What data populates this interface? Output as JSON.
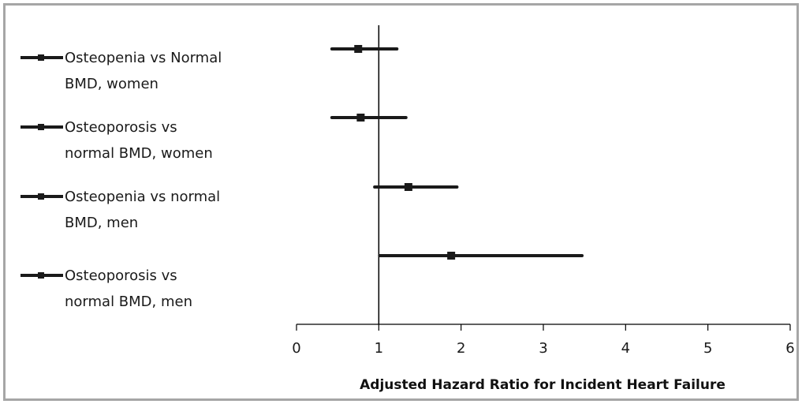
{
  "chart_data": {
    "type": "scatter",
    "subtype": "forest-plot",
    "title": "",
    "xlabel": "Adjusted Hazard Ratio for Incident Heart Failure",
    "ylabel": "",
    "xlim": [
      0,
      6
    ],
    "xticks": [
      "0",
      "1",
      "2",
      "3",
      "4",
      "5",
      "6"
    ],
    "reference_line": 1,
    "grid": false,
    "legend_position": "left",
    "series": [
      {
        "name": "Osteopenia vs Normal BMD, women",
        "lines": [
          "Osteopenia vs Normal",
          "BMD, women"
        ],
        "hr": 0.75,
        "ci": [
          0.43,
          1.22
        ]
      },
      {
        "name": "Osteoporosis vs normal BMD, women",
        "lines": [
          " Osteoporosis vs",
          "normal BMD, women"
        ],
        "hr": 0.78,
        "ci": [
          0.43,
          1.33
        ]
      },
      {
        "name": "Osteopenia vs normal BMD, men",
        "lines": [
          "Osteopenia vs normal",
          "BMD, men"
        ],
        "hr": 1.36,
        "ci": [
          0.95,
          1.95
        ]
      },
      {
        "name": "Osteoporosis vs normal BMD, men",
        "lines": [
          "Osteoporosis vs",
          "normal BMD, men"
        ],
        "hr": 1.88,
        "ci": [
          1.01,
          3.47
        ]
      }
    ]
  },
  "colors": {
    "series": "#1a1a1a",
    "axis": "#000000",
    "frame": "#a6a6a6"
  }
}
